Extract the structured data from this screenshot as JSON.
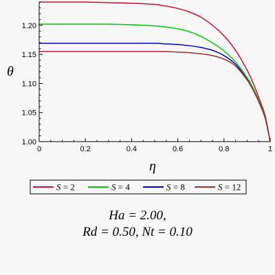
{
  "chart_data": {
    "type": "line",
    "xlabel": "η",
    "ylabel": "θ",
    "xlim": [
      0,
      1
    ],
    "ylim": [
      1.0,
      1.24
    ],
    "x_ticks": [
      0,
      0.2,
      0.4,
      0.6,
      0.8,
      1
    ],
    "x_tick_labels": [
      "0",
      "0.2",
      "0.4",
      "0.6",
      "0.8",
      "1"
    ],
    "y_ticks": [
      1.0,
      1.05,
      1.1,
      1.15,
      1.2
    ],
    "y_tick_labels": [
      "1.00",
      "1.05",
      "1.10",
      "1.15",
      "1.20"
    ],
    "grid": false,
    "legend_position": "bottom",
    "series": [
      {
        "name": "S = 2",
        "legend_var": "S",
        "legend_value": "= 2",
        "color": "#c8102e",
        "x": [
          0,
          0.1,
          0.2,
          0.3,
          0.4,
          0.5,
          0.55,
          0.6,
          0.65,
          0.7,
          0.75,
          0.8,
          0.85,
          0.9,
          0.93,
          0.96,
          0.98,
          1.0
        ],
        "y": [
          1.24,
          1.24,
          1.24,
          1.239,
          1.238,
          1.236,
          1.233,
          1.229,
          1.223,
          1.214,
          1.2,
          1.182,
          1.157,
          1.123,
          1.097,
          1.066,
          1.042,
          1.0
        ]
      },
      {
        "name": "S = 4",
        "legend_var": "S",
        "legend_value": "= 4",
        "color": "#00c800",
        "x": [
          0,
          0.1,
          0.2,
          0.3,
          0.4,
          0.5,
          0.55,
          0.6,
          0.65,
          0.7,
          0.75,
          0.8,
          0.85,
          0.9,
          0.93,
          0.96,
          0.98,
          1.0
        ],
        "y": [
          1.202,
          1.202,
          1.202,
          1.202,
          1.201,
          1.199,
          1.197,
          1.194,
          1.189,
          1.181,
          1.17,
          1.156,
          1.137,
          1.11,
          1.089,
          1.062,
          1.04,
          1.0
        ]
      },
      {
        "name": "S = 8",
        "legend_var": "S",
        "legend_value": "= 8",
        "color": "#0000c8",
        "x": [
          0,
          0.1,
          0.2,
          0.3,
          0.4,
          0.5,
          0.55,
          0.6,
          0.65,
          0.7,
          0.75,
          0.8,
          0.85,
          0.9,
          0.93,
          0.96,
          0.98,
          1.0
        ],
        "y": [
          1.169,
          1.169,
          1.169,
          1.169,
          1.169,
          1.169,
          1.168,
          1.167,
          1.165,
          1.162,
          1.157,
          1.148,
          1.133,
          1.107,
          1.086,
          1.06,
          1.038,
          1.0
        ]
      },
      {
        "name": "S = 12",
        "legend_var": "S",
        "legend_value": "= 12",
        "color": "#a52a2a",
        "x": [
          0,
          0.1,
          0.2,
          0.3,
          0.4,
          0.5,
          0.55,
          0.6,
          0.65,
          0.7,
          0.75,
          0.8,
          0.85,
          0.9,
          0.93,
          0.96,
          0.98,
          1.0
        ],
        "y": [
          1.155,
          1.155,
          1.155,
          1.155,
          1.155,
          1.155,
          1.155,
          1.154,
          1.153,
          1.151,
          1.148,
          1.142,
          1.13,
          1.106,
          1.086,
          1.06,
          1.038,
          1.0
        ]
      }
    ]
  },
  "parameters": {
    "line1": "Ha = 2.00,",
    "line2": "Rd = 0.50, Nt = 0.10"
  }
}
